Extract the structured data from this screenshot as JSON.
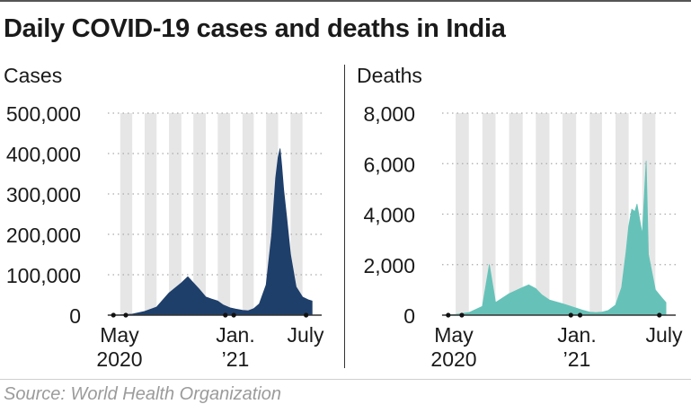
{
  "title": "Daily COVID-19 cases and deaths in India",
  "source": "Source: World Health Organization",
  "colors": {
    "cases": "#1f3f6b",
    "deaths": "#66c2b8",
    "band": "#e6e6e6",
    "grid": "#aaaaaa",
    "axis": "#333333"
  },
  "chart_data": [
    {
      "type": "area",
      "title": "Cases",
      "x_ticks": [
        "May 2020",
        "Jan. ’21",
        "July"
      ],
      "y_ticks": [
        "0",
        "100,000",
        "200,000",
        "300,000",
        "400,000",
        "500,000"
      ],
      "ylim": [
        0,
        500000
      ],
      "xlim": [
        "2020-03-01",
        "2021-07-31"
      ],
      "grid": "horizontal dotted",
      "series": [
        {
          "x": [
            "2020-03-01",
            "2020-04-01",
            "2020-05-01",
            "2020-06-01",
            "2020-07-01",
            "2020-08-01",
            "2020-09-01",
            "2020-09-17",
            "2020-10-01",
            "2020-10-15",
            "2020-11-01",
            "2020-11-15",
            "2020-12-01",
            "2020-12-15",
            "2021-01-01",
            "2021-01-15",
            "2021-02-01",
            "2021-02-15",
            "2021-03-01",
            "2021-03-15",
            "2021-04-01",
            "2021-04-15",
            "2021-04-25",
            "2021-05-01",
            "2021-05-06",
            "2021-05-10",
            "2021-05-15",
            "2021-05-22",
            "2021-06-01",
            "2021-06-15",
            "2021-07-01",
            "2021-07-15",
            "2021-07-25"
          ],
          "values": [
            0,
            1000,
            2500,
            9000,
            20000,
            55000,
            80000,
            95000,
            80000,
            65000,
            45000,
            40000,
            35000,
            25000,
            18000,
            15000,
            12000,
            11000,
            16000,
            28000,
            75000,
            200000,
            340000,
            390000,
            412000,
            370000,
            310000,
            245000,
            150000,
            70000,
            45000,
            38000,
            35000
          ]
        }
      ]
    },
    {
      "type": "area",
      "title": "Deaths",
      "x_ticks": [
        "May 2020",
        "Jan. ’21",
        "July"
      ],
      "y_ticks": [
        "0",
        "2,000",
        "4,000",
        "6,000",
        "8,000"
      ],
      "ylim": [
        0,
        8000
      ],
      "xlim": [
        "2020-03-01",
        "2021-07-31"
      ],
      "grid": "horizontal dotted",
      "series": [
        {
          "x": [
            "2020-03-01",
            "2020-04-01",
            "2020-05-01",
            "2020-06-01",
            "2020-06-17",
            "2020-07-01",
            "2020-08-01",
            "2020-09-01",
            "2020-09-15",
            "2020-10-01",
            "2020-10-15",
            "2020-11-01",
            "2020-12-01",
            "2021-01-01",
            "2021-01-15",
            "2021-02-01",
            "2021-02-15",
            "2021-03-01",
            "2021-03-15",
            "2021-04-01",
            "2021-04-15",
            "2021-04-25",
            "2021-05-01",
            "2021-05-08",
            "2021-05-15",
            "2021-05-20",
            "2021-06-01",
            "2021-06-10",
            "2021-06-15",
            "2021-07-01",
            "2021-07-15",
            "2021-07-25"
          ],
          "values": [
            0,
            30,
            100,
            350,
            2000,
            500,
            850,
            1100,
            1200,
            1050,
            800,
            600,
            450,
            280,
            200,
            120,
            100,
            120,
            180,
            400,
            1100,
            2500,
            3500,
            4200,
            4100,
            4400,
            3200,
            6100,
            2400,
            1000,
            700,
            500
          ]
        }
      ]
    }
  ]
}
